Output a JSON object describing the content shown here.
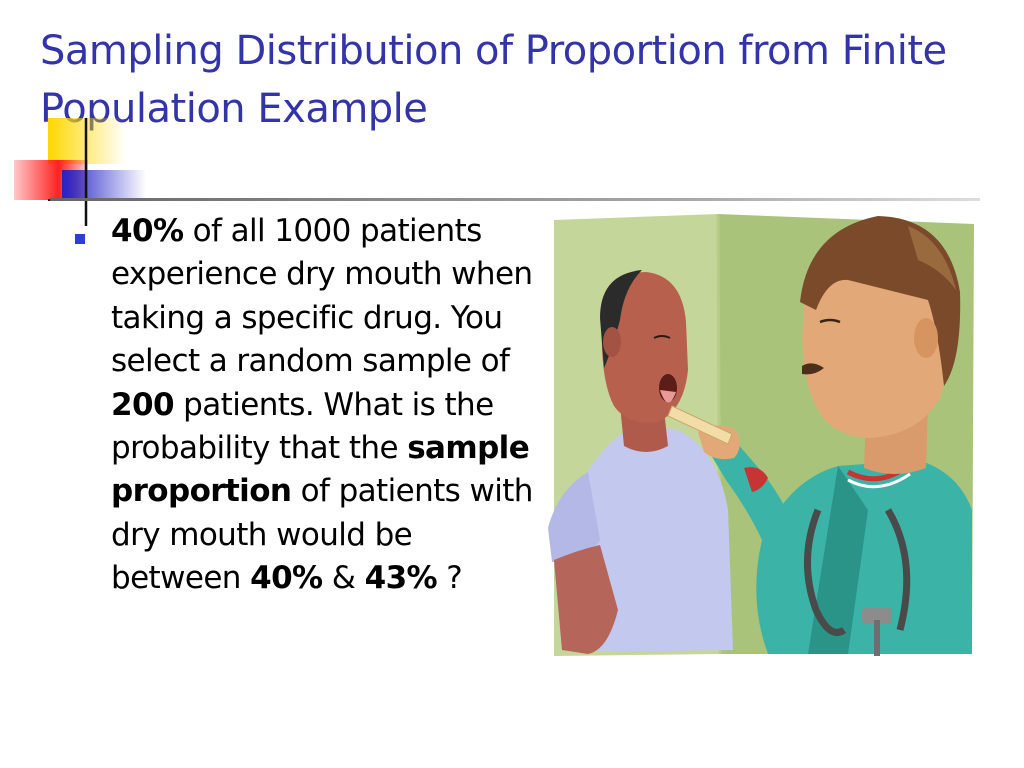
{
  "slide": {
    "title": "Sampling Distribution of Proportion from Finite Population Example",
    "bullet": {
      "part1_bold": "40%",
      "part2": " of all 1000 patients experience dry mouth when taking a specific drug.  You select a random sample of ",
      "part3_bold": "200",
      "part4": " patients.  What is the probability that the ",
      "part5_bold": "sample proportion",
      "part6": " of patients with dry mouth would be between ",
      "part7_bold": "40%",
      "part8": " & ",
      "part9_bold": "43%",
      "part10": " ?"
    }
  },
  "colors": {
    "title": "#3333aa",
    "bullet": "#2b3fd6",
    "accent_yellow": "#ffd700",
    "accent_red": "#ff3333",
    "accent_blue": "#2b2bd6"
  },
  "icons": {
    "bullet": "square-bullet-icon",
    "decoration": "color-blocks-icon",
    "illustration": "doctor-examining-patient-clipart"
  }
}
